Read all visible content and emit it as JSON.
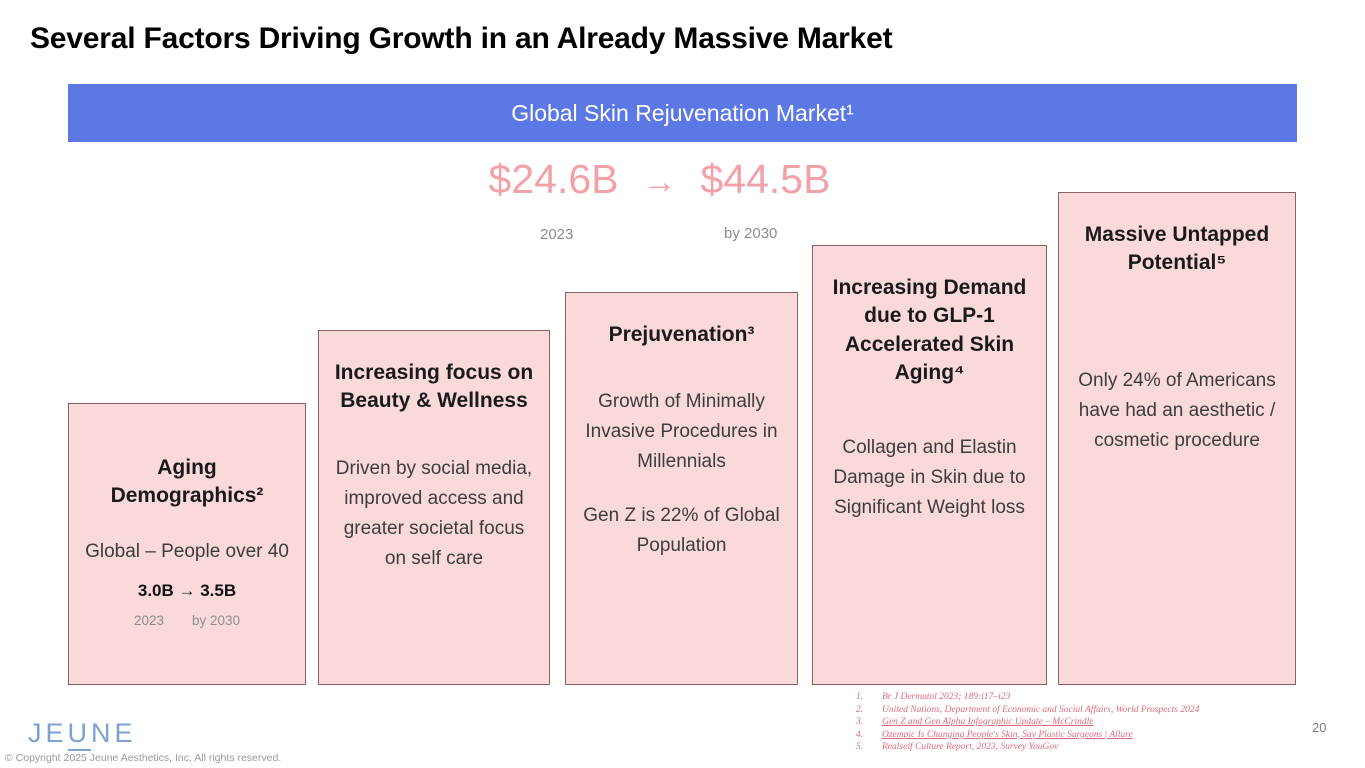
{
  "slide": {
    "title": "Several Factors Driving Growth in an Already Massive Market",
    "banner": {
      "label": "Global Skin Rejuvenation Market¹"
    },
    "market": {
      "from": "$24.6B",
      "arrow": "→",
      "to": "$44.5B",
      "from_year": "2023",
      "to_year": "by 2030"
    },
    "boxes": [
      {
        "heading": "Aging Demographics²",
        "body": "Global – People over 40",
        "stat": "3.0B → 3.5B",
        "stat_from_year": "2023",
        "stat_to_year": "by 2030"
      },
      {
        "heading": "Increasing focus on Beauty & Wellness",
        "body": "Driven by social media, improved access and greater societal focus on self care"
      },
      {
        "heading": "Prejuvenation³",
        "body": "Growth of Minimally Invasive Procedures in Millennials",
        "body2": "Gen Z is 22% of Global Population"
      },
      {
        "heading": "Increasing Demand due to GLP-1 Accelerated Skin Aging⁴",
        "body": "Collagen and Elastin Damage in Skin due to Significant Weight loss"
      },
      {
        "heading": "Massive Untapped Potential⁵",
        "body": "Only 24% of Americans have had an aesthetic / cosmetic procedure"
      }
    ],
    "footnotes": [
      {
        "num": "1.",
        "text": "Br J Dermatol 2023; 189:i17–i23"
      },
      {
        "num": "2.",
        "text": "United Nations, Department of Economic and Social Affairs, World Prospects 2024"
      },
      {
        "num": "3.",
        "text": "Gen Z and Gen Alpha Infographic Update – McCrindle"
      },
      {
        "num": "4.",
        "text": "Ozempic Is Changing People's Skin, Say Plastic Surgeons | Allure"
      },
      {
        "num": "5.",
        "text": "Realself Culture Report, 2023, Survey YouGov"
      }
    ],
    "logo": {
      "pre": "JE",
      "u": "U",
      "post": "NE"
    },
    "copyright": "© Copyright 2025 Jeune Aesthetics, Inc. All rights reserved.",
    "page_number": "20"
  },
  "colors": {
    "banner_blue": "#5B78E4",
    "market_pink": "#F2A1A8",
    "box_fill": "#FAD9DB",
    "box_border": "#8A6265",
    "footnote_pink": "#DE6B7B",
    "logo_blue": "#7BA2D0"
  }
}
